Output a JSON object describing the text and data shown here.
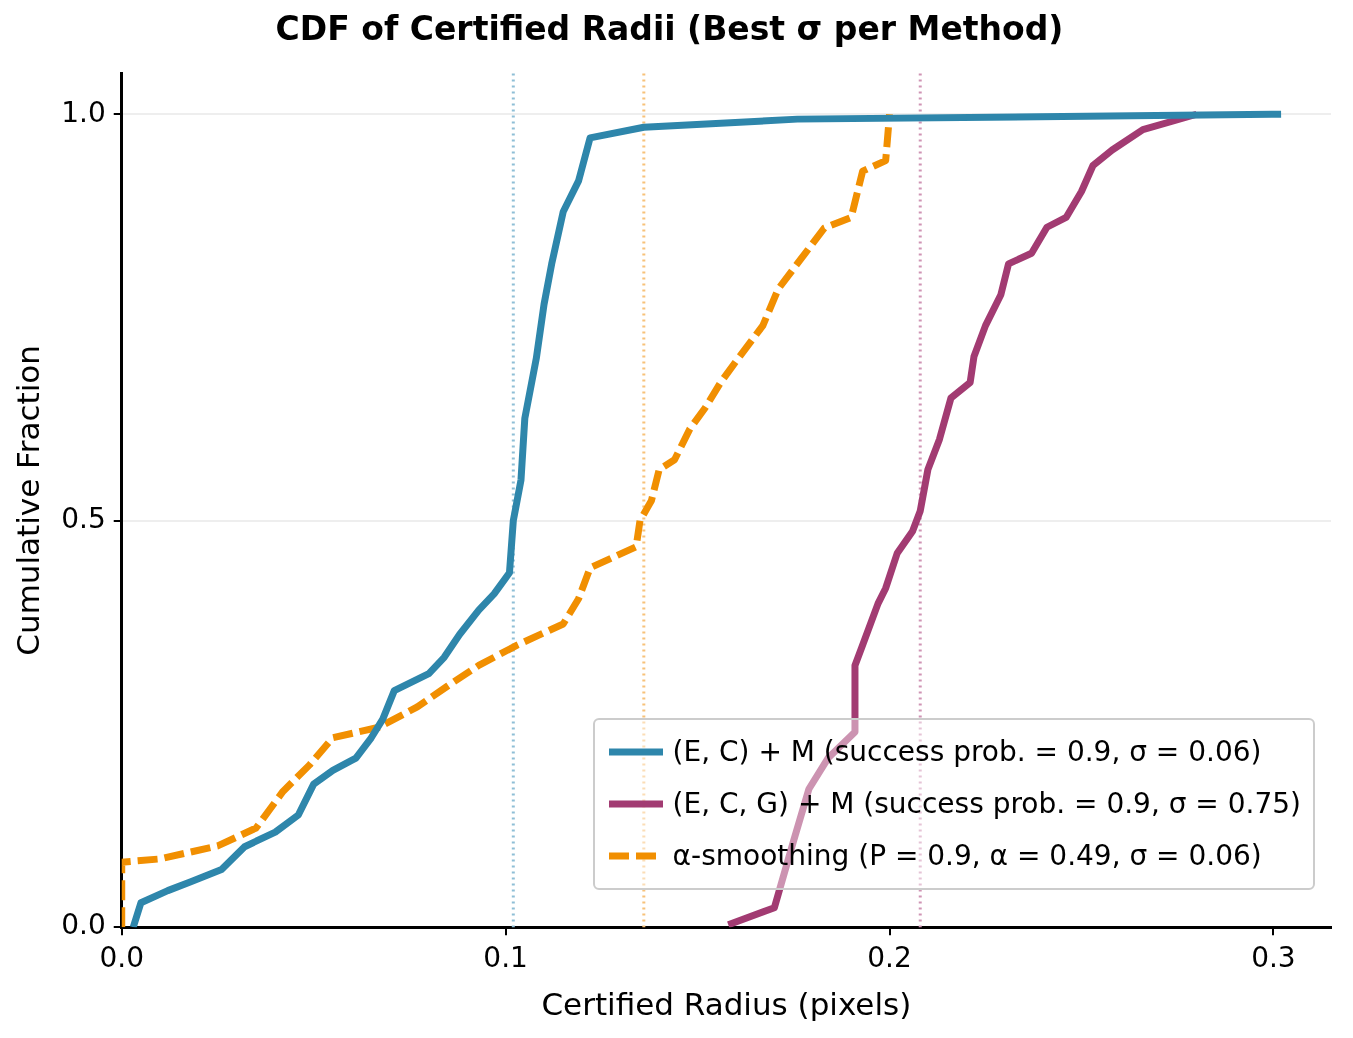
{
  "chart_data": {
    "type": "line",
    "title": "CDF of Certified Radii (Best σ per Method)",
    "xlabel": "Certified Radius (pixels)",
    "ylabel": "Cumulative Fraction",
    "xlim": [
      0,
      0.315
    ],
    "xticks": [
      {
        "value": 0,
        "label": "0.0"
      },
      0.1,
      0.2,
      0.3
    ],
    "ylim": [
      0,
      1.05
    ],
    "yticks": [
      {
        "value": 0,
        "label": "0.0"
      },
      0.5,
      {
        "value": 1,
        "label": "1.0"
      }
    ],
    "grid": "y",
    "legend": "bottom right",
    "marker": "none",
    "series": [
      {
        "name": "(E, C) + M (success prob. = 0.9, σ = 0.06)",
        "color": "#2e86ab",
        "line_style": "solid",
        "x": [
          0.003,
          0.005,
          0.012,
          0.018,
          0.026,
          0.032,
          0.04,
          0.046,
          0.05,
          0.055,
          0.061,
          0.065,
          0.068,
          0.071,
          0.08,
          0.084,
          0.088,
          0.093,
          0.097,
          0.101,
          0.102,
          0.104,
          0.105,
          0.108,
          0.11,
          0.112,
          0.115,
          0.119,
          0.122,
          0.136,
          0.176,
          0.302
        ],
        "values": [
          0,
          0.03,
          0.045,
          0.056,
          0.071,
          0.099,
          0.117,
          0.138,
          0.176,
          0.193,
          0.208,
          0.233,
          0.256,
          0.291,
          0.312,
          0.332,
          0.36,
          0.39,
          0.41,
          0.436,
          0.5,
          0.55,
          0.626,
          0.7,
          0.766,
          0.816,
          0.88,
          0.918,
          0.971,
          0.984,
          0.994,
          1
        ]
      },
      {
        "name": "(E, C, G) + M (success prob. = 0.9, σ = 0.75)",
        "color": "#a23b72",
        "line_style": "solid",
        "x": [
          0.158,
          0.17,
          0.175,
          0.179,
          0.184,
          0.191,
          0.191,
          0.193,
          0.197,
          0.199,
          0.202,
          0.206,
          0.208,
          0.21,
          0.213,
          0.216,
          0.221,
          0.222,
          0.225,
          0.229,
          0.231,
          0.237,
          0.241,
          0.246,
          0.25,
          0.253,
          0.258,
          0.266,
          0.28
        ],
        "values": [
          0.003,
          0.024,
          0.106,
          0.17,
          0.208,
          0.24,
          0.322,
          0.347,
          0.398,
          0.417,
          0.46,
          0.487,
          0.512,
          0.563,
          0.6,
          0.651,
          0.67,
          0.702,
          0.74,
          0.778,
          0.816,
          0.829,
          0.861,
          0.873,
          0.905,
          0.937,
          0.956,
          0.981,
          1
        ]
      },
      {
        "name": "α-smoothing (P = 0.9, α = 0.49, σ = 0.06)",
        "color": "#f18f01",
        "line_style": "dashed",
        "x": [
          0,
          0,
          0.01,
          0.025,
          0.035,
          0.042,
          0.049,
          0.055,
          0.067,
          0.077,
          0.085,
          0.093,
          0.103,
          0.115,
          0.119,
          0.122,
          0.128,
          0.134,
          0.135,
          0.138,
          0.14,
          0.144,
          0.148,
          0.152,
          0.156,
          0.16,
          0.167,
          0.171,
          0.175,
          0.179,
          0.183,
          0.19,
          0.193,
          0.199,
          0.2
        ],
        "values": [
          0,
          0.08,
          0.084,
          0.1,
          0.122,
          0.167,
          0.2,
          0.233,
          0.246,
          0.271,
          0.297,
          0.322,
          0.347,
          0.373,
          0.404,
          0.442,
          0.455,
          0.468,
          0.5,
          0.525,
          0.563,
          0.575,
          0.613,
          0.639,
          0.67,
          0.696,
          0.74,
          0.785,
          0.81,
          0.835,
          0.86,
          0.873,
          0.93,
          0.943,
          1
        ]
      }
    ],
    "ref_lines": [
      {
        "axis": "x",
        "value": 0.102,
        "color": "#8fbfd6",
        "line_style": "dotted"
      },
      {
        "axis": "x",
        "value": 0.136,
        "color": "#f7c27a",
        "line_style": "dotted"
      },
      {
        "axis": "x",
        "value": 0.208,
        "color": "#cf94b4",
        "line_style": "dotted"
      }
    ]
  }
}
